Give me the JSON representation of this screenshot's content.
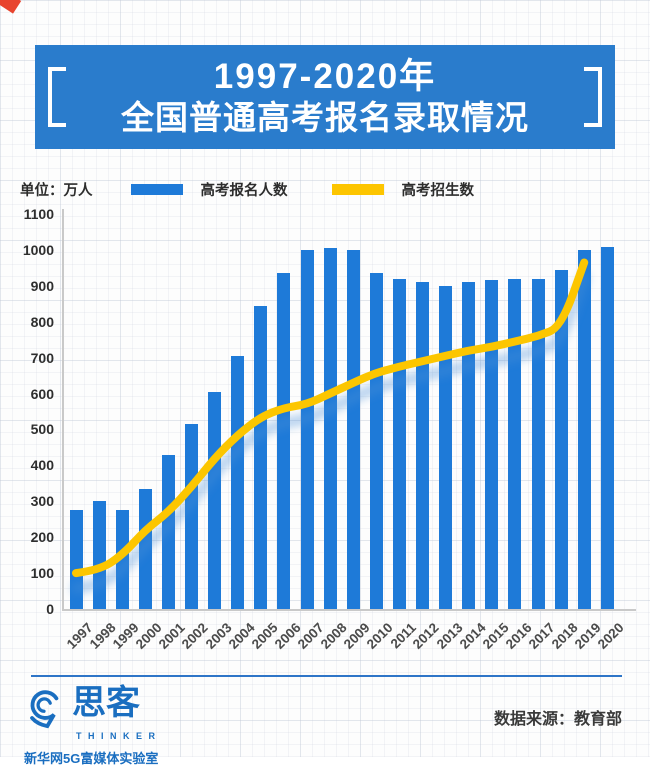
{
  "banner": {
    "title_line1": "1997-2020年",
    "title_line2": "全国普通高考报名录取情况"
  },
  "legend": {
    "unit_label": "单位：万人",
    "series1_label": "高考报名人数",
    "series2_label": "高考招生数"
  },
  "footer": {
    "logo_text": "思客",
    "logo_subtext": "THINKER",
    "lab_name": "新华网5G富媒体实验室",
    "source_text": "数据来源：教育部"
  },
  "colors": {
    "bar_blue": "#1e7ad8",
    "line_yellow": "#fcc600",
    "line_glow_blue": "#4a8fd8",
    "banner_blue": "#2a7ccc",
    "footer_blue": "#2e75c8",
    "axis_gray": "#c9c9c9"
  },
  "chart_data": {
    "type": "bar",
    "title": "1997-2020年全国普通高考报名录取情况",
    "unit": "万人",
    "categories": [
      "1997",
      "1998",
      "1999",
      "2000",
      "2001",
      "2002",
      "2003",
      "2004",
      "2005",
      "2006",
      "2007",
      "2008",
      "2009",
      "2010",
      "2011",
      "2012",
      "2013",
      "2014",
      "2015",
      "2016",
      "2017",
      "2018",
      "2019",
      "2020"
    ],
    "series": [
      {
        "name": "高考报名人数",
        "type": "bar",
        "values": [
          275,
          300,
          275,
          335,
          430,
          515,
          605,
          705,
          845,
          935,
          1000,
          1005,
          1000,
          935,
          920,
          910,
          900,
          910,
          915,
          920,
          920,
          945,
          1000,
          1008
        ]
      },
      {
        "name": "高考招生数",
        "type": "line",
        "values": [
          100,
          108,
          150,
          220,
          270,
          340,
          420,
          485,
          535,
          560,
          570,
          600,
          630,
          658,
          675,
          690,
          705,
          720,
          730,
          745,
          760,
          785,
          965,
          null
        ]
      }
    ],
    "xlabel": "",
    "ylabel": "",
    "ylim": [
      0,
      1100
    ],
    "ytick_step": 100,
    "grid": false,
    "legend_position": "top"
  }
}
